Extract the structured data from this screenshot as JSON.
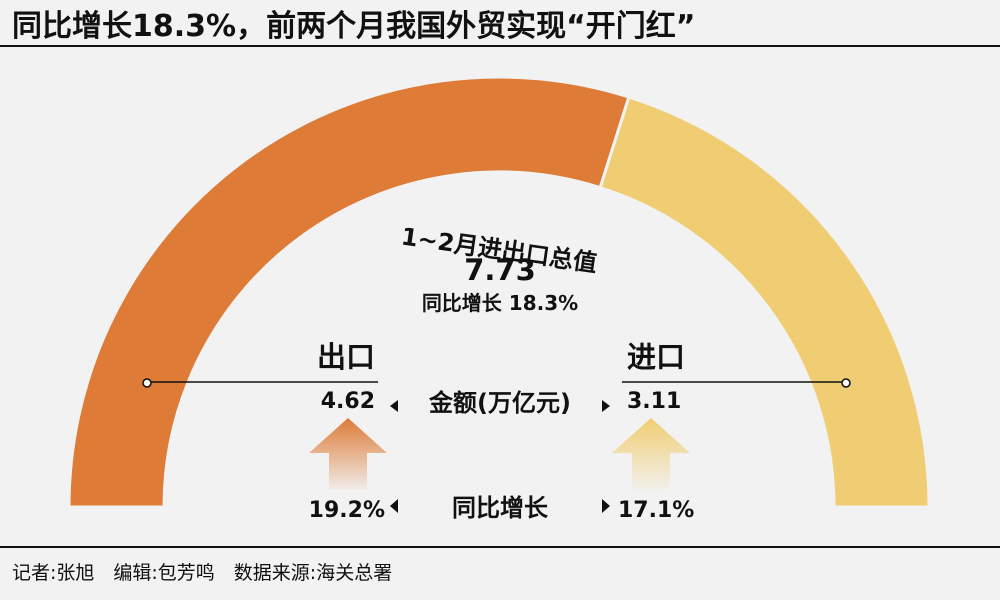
{
  "title": "同比增长18.3%，前两个月我国外贸实现“开门红”",
  "chart_data": {
    "type": "pie",
    "title": "1~2月进出口总值",
    "total_value": "7.73",
    "total_growth": "同比增长 18.3%",
    "unit_label": "金额(万亿元)",
    "growth_label": "同比增长",
    "total": 7.73,
    "slices": [
      {
        "name": "出口",
        "value": 4.62,
        "value_label": "4.62",
        "growth_label": "19.2%",
        "color": "#dd7b37"
      },
      {
        "name": "进口",
        "value": 3.11,
        "value_label": "3.11",
        "growth_label": "17.1%",
        "color": "#f0cd72"
      }
    ]
  },
  "credits": "记者:张旭　编辑:包芳鸣　数据来源:海关总署",
  "colors": {
    "export": "#dd7b37",
    "import": "#f0cd72",
    "background": "#f2f2f2",
    "text": "#111111"
  }
}
